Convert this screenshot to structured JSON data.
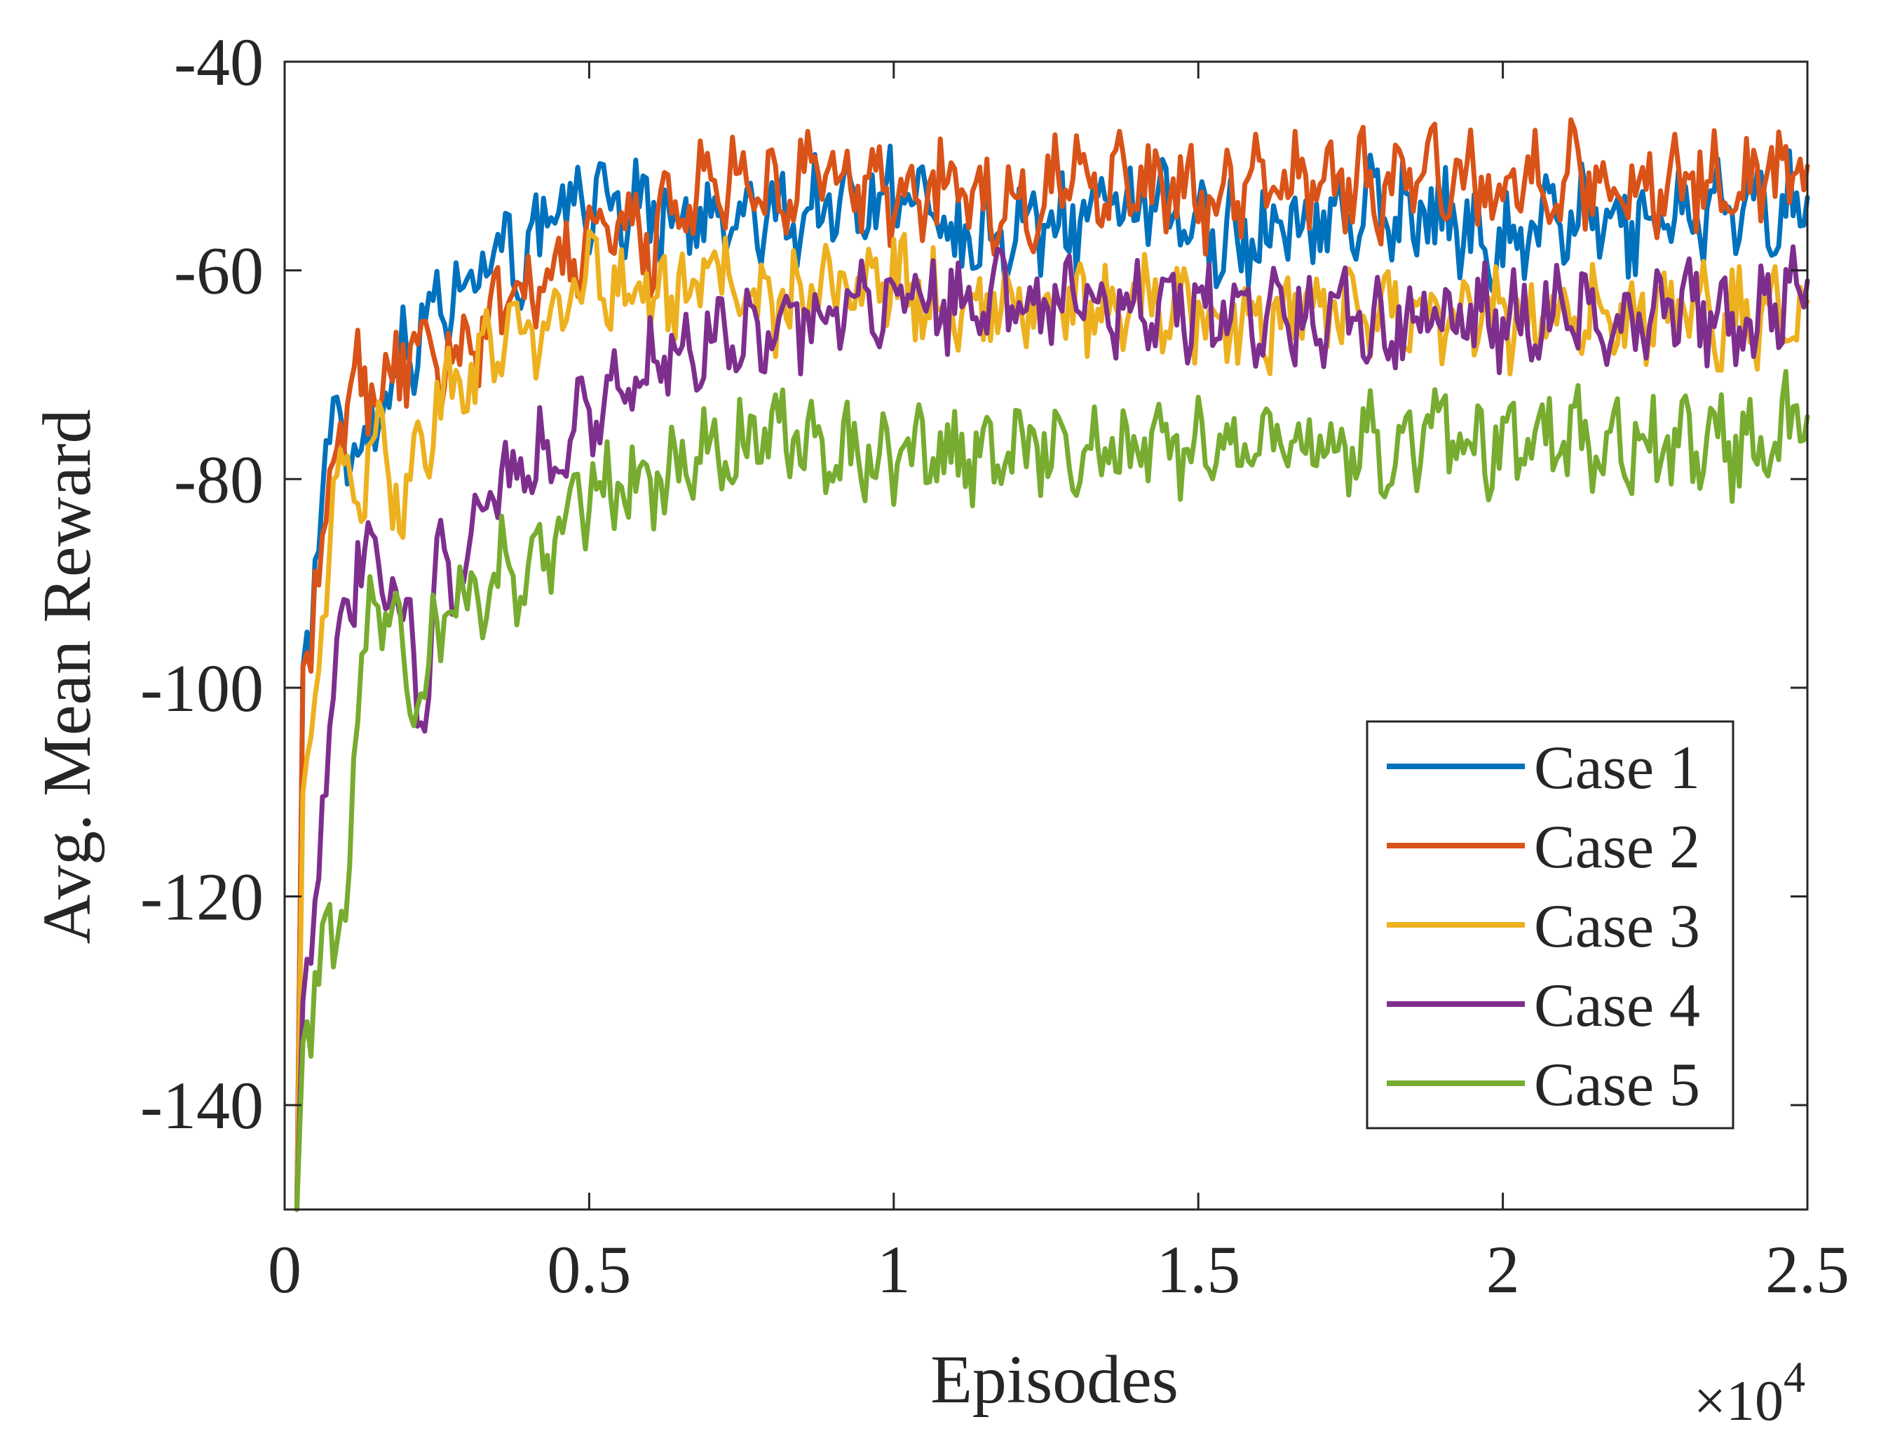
{
  "chart_data": {
    "type": "line",
    "title": "",
    "xlabel": "Episodes",
    "ylabel": "Avg. Mean Reward",
    "x_exponent_label": "×10",
    "x_exponent_power": "4",
    "xlim": [
      0,
      2.5
    ],
    "ylim": [
      -150,
      -40
    ],
    "x_ticks": [
      0,
      0.5,
      1,
      1.5,
      2,
      2.5
    ],
    "x_tick_labels": [
      "0",
      "0.5",
      "1",
      "1.5",
      "2",
      "2.5"
    ],
    "y_ticks": [
      -140,
      -120,
      -100,
      -80,
      -60,
      -40
    ],
    "y_tick_labels": [
      "-140",
      "-120",
      "-100",
      "-80",
      "-60",
      "-40"
    ],
    "grid": false,
    "legend_position": "middle-right",
    "series": [
      {
        "name": "Case 1",
        "color": "#0072BD",
        "x": [
          0.02,
          0.03,
          0.05,
          0.08,
          0.12,
          0.16,
          0.2,
          0.25,
          0.3,
          0.35,
          0.4,
          0.45,
          0.5,
          0.6,
          0.7,
          0.8,
          0.9,
          1.0,
          1.1,
          1.2,
          1.3,
          1.4,
          1.5,
          1.6,
          1.7,
          1.8,
          1.9,
          2.0,
          2.1,
          2.2,
          2.3,
          2.4,
          2.5
        ],
        "values": [
          -150,
          -98,
          -88,
          -74,
          -78,
          -72,
          -67,
          -64,
          -60,
          -57,
          -59,
          -55,
          -53,
          -54,
          -56,
          -55,
          -54,
          -52,
          -58,
          -56,
          -55,
          -54,
          -56,
          -57,
          -55,
          -54,
          -55,
          -57,
          -55,
          -56,
          -54,
          -55,
          -53
        ]
      },
      {
        "name": "Case 2",
        "color": "#D95319",
        "x": [
          0.02,
          0.03,
          0.05,
          0.08,
          0.12,
          0.16,
          0.2,
          0.25,
          0.3,
          0.35,
          0.4,
          0.45,
          0.5,
          0.6,
          0.7,
          0.8,
          0.9,
          1.0,
          1.1,
          1.2,
          1.3,
          1.4,
          1.5,
          1.6,
          1.7,
          1.8,
          1.9,
          2.0,
          2.1,
          2.2,
          2.3,
          2.4,
          2.5
        ],
        "values": [
          -150,
          -98,
          -94,
          -78,
          -70,
          -71,
          -68,
          -70,
          -67,
          -64,
          -63,
          -60,
          -57,
          -57,
          -52,
          -53,
          -51,
          -53,
          -52,
          -54,
          -50,
          -52,
          -53,
          -52,
          -51,
          -52,
          -51,
          -52,
          -51,
          -52,
          -51,
          -52,
          -50
        ]
      },
      {
        "name": "Case 3",
        "color": "#EDB120",
        "x": [
          0.02,
          0.03,
          0.05,
          0.08,
          0.12,
          0.16,
          0.2,
          0.25,
          0.3,
          0.35,
          0.4,
          0.45,
          0.5,
          0.6,
          0.7,
          0.8,
          0.9,
          1.0,
          1.1,
          1.2,
          1.3,
          1.4,
          1.5,
          1.6,
          1.7,
          1.8,
          1.9,
          2.0,
          2.1,
          2.2,
          2.3,
          2.4,
          2.5
        ],
        "values": [
          -150,
          -110,
          -100,
          -82,
          -80,
          -78,
          -82,
          -72,
          -71,
          -67,
          -66,
          -64,
          -60,
          -63,
          -60,
          -64,
          -62,
          -61,
          -64,
          -63,
          -64,
          -63,
          -64,
          -65,
          -64,
          -65,
          -64,
          -65,
          -64,
          -65,
          -64,
          -65,
          -63
        ]
      },
      {
        "name": "Case 4",
        "color": "#7E2F8E",
        "x": [
          0.02,
          0.03,
          0.05,
          0.08,
          0.12,
          0.16,
          0.2,
          0.23,
          0.25,
          0.3,
          0.35,
          0.4,
          0.45,
          0.5,
          0.6,
          0.7,
          0.8,
          0.9,
          1.0,
          1.1,
          1.2,
          1.3,
          1.4,
          1.5,
          1.6,
          1.7,
          1.8,
          1.9,
          2.0,
          2.1,
          2.2,
          2.3,
          2.4,
          2.5
        ],
        "values": [
          -150,
          -130,
          -118,
          -100,
          -88,
          -90,
          -93,
          -103,
          -90,
          -86,
          -80,
          -79,
          -77,
          -73,
          -70,
          -66,
          -66,
          -64,
          -63,
          -63,
          -62,
          -63,
          -63,
          -64,
          -64,
          -64,
          -65,
          -64,
          -65,
          -64,
          -65,
          -64,
          -66,
          -61
        ]
      },
      {
        "name": "Case 5",
        "color": "#77AC30",
        "x": [
          0.02,
          0.03,
          0.05,
          0.08,
          0.1,
          0.12,
          0.14,
          0.16,
          0.2,
          0.23,
          0.25,
          0.3,
          0.35,
          0.4,
          0.45,
          0.5,
          0.6,
          0.7,
          0.8,
          0.9,
          1.0,
          1.1,
          1.2,
          1.3,
          1.4,
          1.5,
          1.6,
          1.7,
          1.8,
          1.9,
          2.0,
          2.1,
          2.2,
          2.3,
          2.4,
          2.5
        ],
        "values": [
          -150,
          -134,
          -128,
          -125,
          -120,
          -102,
          -92,
          -92,
          -97,
          -101,
          -94,
          -92,
          -89,
          -89,
          -85,
          -81,
          -81,
          -78,
          -76,
          -77,
          -78,
          -78,
          -77,
          -77,
          -77,
          -77,
          -77,
          -76,
          -77,
          -76,
          -77,
          -76,
          -77,
          -76,
          -77,
          -74
        ]
      }
    ]
  }
}
